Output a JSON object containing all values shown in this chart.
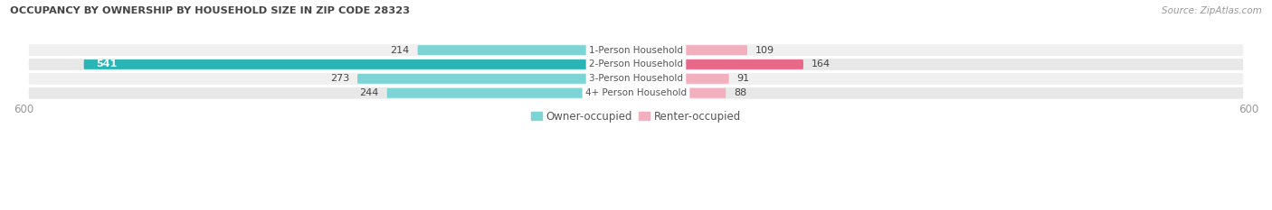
{
  "title": "OCCUPANCY BY OWNERSHIP BY HOUSEHOLD SIZE IN ZIP CODE 28323",
  "source": "Source: ZipAtlas.com",
  "categories": [
    "1-Person Household",
    "2-Person Household",
    "3-Person Household",
    "4+ Person Household"
  ],
  "owner_values": [
    214,
    541,
    273,
    244
  ],
  "renter_values": [
    109,
    164,
    91,
    88
  ],
  "owner_color": "#5BC8C8",
  "renter_color_by_row": [
    "#F2AFBE",
    "#E8688A",
    "#F2AFBE",
    "#F2AFBE"
  ],
  "owner_color_by_row": [
    "#7DD4D4",
    "#29B5B5",
    "#7DD4D4",
    "#7DD4D4"
  ],
  "row_bg_colors": [
    "#F0F0F0",
    "#E8E8E8",
    "#F0F0F0",
    "#E8E8E8"
  ],
  "max_value": 600,
  "title_color": "#444444",
  "center_label_color": "#555555",
  "axis_label_color": "#999999",
  "legend_owner_label": "Owner-occupied",
  "legend_renter_label": "Renter-occupied",
  "figsize": [
    14.06,
    2.33
  ],
  "dpi": 100
}
